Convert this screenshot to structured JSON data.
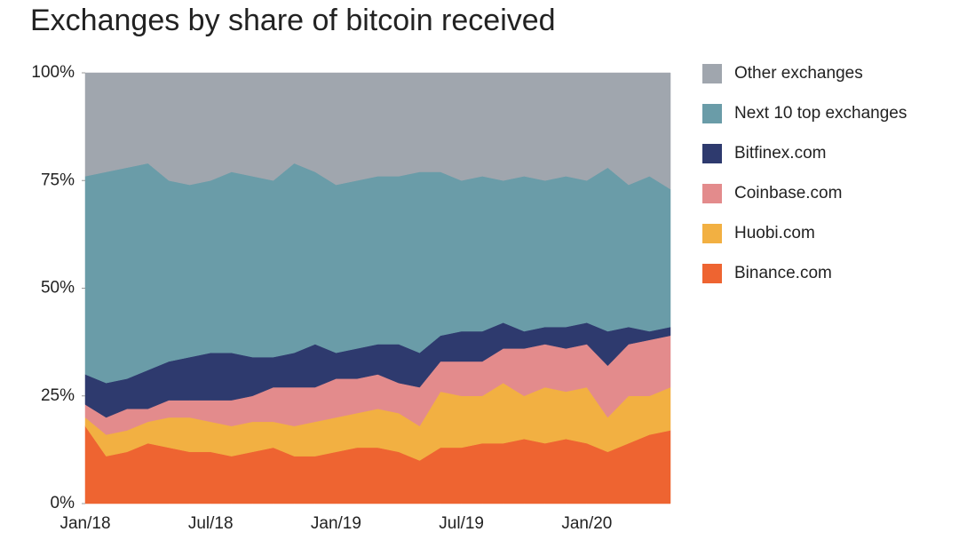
{
  "chart_data": {
    "type": "stacked_area",
    "title": "Exchanges by share of bitcoin received",
    "categories": [
      "Jan/18",
      null,
      null,
      null,
      null,
      null,
      "Jul/18",
      null,
      null,
      null,
      null,
      null,
      "Jan/19",
      null,
      null,
      null,
      null,
      null,
      "Jul/19",
      null,
      null,
      null,
      null,
      null,
      "Jan/20",
      null,
      null,
      null,
      null
    ],
    "ylim": [
      0,
      100
    ],
    "yticks": [
      {
        "value": 0,
        "label": "0%"
      },
      {
        "value": 25,
        "label": "25%"
      },
      {
        "value": 50,
        "label": "50%"
      },
      {
        "value": 75,
        "label": "75%"
      },
      {
        "value": 100,
        "label": "100%"
      }
    ],
    "legend": "right",
    "series": [
      {
        "name": "Binance.com",
        "color": "#ee6431",
        "values": [
          18,
          11,
          12,
          14,
          13,
          12,
          12,
          11,
          12,
          13,
          11,
          11,
          12,
          13,
          13,
          12,
          10,
          13,
          13,
          14,
          14,
          15,
          14,
          15,
          14,
          12,
          14,
          16,
          17
        ]
      },
      {
        "name": "Huobi.com",
        "color": "#f2b042",
        "values": [
          2,
          5,
          5,
          5,
          7,
          8,
          7,
          7,
          7,
          6,
          7,
          8,
          8,
          8,
          9,
          9,
          8,
          13,
          12,
          11,
          14,
          10,
          13,
          11,
          13,
          8,
          11,
          9,
          10
        ]
      },
      {
        "name": "Coinbase.com",
        "color": "#e38b8c",
        "values": [
          3,
          4,
          5,
          3,
          4,
          4,
          5,
          6,
          6,
          8,
          9,
          8,
          9,
          8,
          8,
          7,
          9,
          7,
          8,
          8,
          8,
          11,
          10,
          10,
          10,
          12,
          12,
          13,
          12
        ]
      },
      {
        "name": "Bitfinex.com",
        "color": "#2e3a6e",
        "values": [
          7,
          8,
          7,
          9,
          9,
          10,
          11,
          11,
          9,
          7,
          8,
          10,
          6,
          7,
          7,
          9,
          8,
          6,
          7,
          7,
          6,
          4,
          4,
          5,
          5,
          8,
          4,
          2,
          2
        ]
      },
      {
        "name": "Next 10 top exchanges",
        "color": "#6a9ca8",
        "values": [
          46,
          49,
          49,
          48,
          42,
          40,
          40,
          42,
          42,
          41,
          44,
          40,
          39,
          39,
          39,
          39,
          42,
          38,
          35,
          36,
          33,
          36,
          34,
          35,
          33,
          38,
          33,
          36,
          32
        ]
      },
      {
        "name": "Other exchanges",
        "color": "#a0a6ae",
        "values": [
          24,
          23,
          22,
          21,
          25,
          26,
          25,
          23,
          24,
          25,
          21,
          23,
          26,
          25,
          24,
          24,
          23,
          23,
          25,
          24,
          25,
          24,
          25,
          24,
          25,
          22,
          26,
          24,
          27
        ]
      }
    ]
  }
}
